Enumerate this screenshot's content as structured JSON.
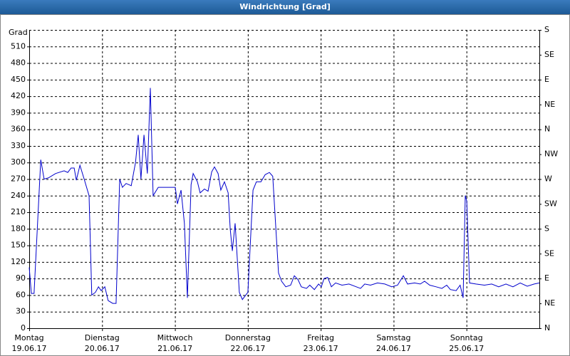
{
  "chart_data": {
    "type": "line",
    "title": "Windrichtung [Grad]",
    "y_label": "Grad",
    "color": "#0000cc",
    "grid": true,
    "xlim": [
      0,
      168
    ],
    "xticks": [
      {
        "value": 0,
        "label": "Montag"
      },
      {
        "value": 24,
        "label": "Dienstag"
      },
      {
        "value": 48,
        "label": "Mittwoch"
      },
      {
        "value": 72,
        "label": "Donnerstag"
      },
      {
        "value": 96,
        "label": "Freitag"
      },
      {
        "value": 120,
        "label": "Samstag"
      },
      {
        "value": 144,
        "label": "Sonntag"
      }
    ],
    "xtick_dates": [
      "19.06.17",
      "20.06.17",
      "21.06.17",
      "22.06.17",
      "23.06.17",
      "24.06.17",
      "25.06.17"
    ],
    "ylim": [
      0,
      540
    ],
    "yticks": [
      0,
      30,
      60,
      90,
      120,
      150,
      180,
      210,
      240,
      270,
      300,
      330,
      360,
      390,
      420,
      450,
      480,
      510
    ],
    "y2lim": [
      0,
      540
    ],
    "y2ticks": [
      {
        "value": 0,
        "label": "N"
      },
      {
        "value": 45,
        "label": "NE"
      },
      {
        "value": 90,
        "label": "E"
      },
      {
        "value": 135,
        "label": "SE"
      },
      {
        "value": 180,
        "label": "S"
      },
      {
        "value": 225,
        "label": "SW"
      },
      {
        "value": 270,
        "label": "W"
      },
      {
        "value": 315,
        "label": "NW"
      },
      {
        "value": 360,
        "label": "N"
      },
      {
        "value": 405,
        "label": "NE"
      },
      {
        "value": 450,
        "label": "E"
      },
      {
        "value": 495,
        "label": "SE"
      },
      {
        "value": 540,
        "label": "S"
      }
    ],
    "x": [
      0,
      0.7,
      1.6,
      3.8,
      4.9,
      6.3,
      8.7,
      11.5,
      12.7,
      13.8,
      14.8,
      15.5,
      16.7,
      18.1,
      19.7,
      20.6,
      21.8,
      22.8,
      23.7,
      24.9,
      26.0,
      27.5,
      28.6,
      29.8,
      30.7,
      31.9,
      33.6,
      35.0,
      35.9,
      36.8,
      37.8,
      38.9,
      39.9,
      40.8,
      42.5,
      45.5,
      48.1,
      48.8,
      50.0,
      51.1,
      52.1,
      53.3,
      54.0,
      55.4,
      56.3,
      57.7,
      58.9,
      60.1,
      61.0,
      62.2,
      63.1,
      64.3,
      65.5,
      66.2,
      66.9,
      67.8,
      69.2,
      70.2,
      71.3,
      72.0,
      73.7,
      74.8,
      76.3,
      77.7,
      79.1,
      80.2,
      82.1,
      83.1,
      84.5,
      86.1,
      87.3,
      88.5,
      89.6,
      91.3,
      92.4,
      93.9,
      95.3,
      96.2,
      97.1,
      98.3,
      99.5,
      100.9,
      103.0,
      105.3,
      107.7,
      109.1,
      110.5,
      112.4,
      114.7,
      117.1,
      119.4,
      121.3,
      123.2,
      124.6,
      126.9,
      128.8,
      130.2,
      131.9,
      134.0,
      135.9,
      137.5,
      138.7,
      140.6,
      141.9,
      142.9,
      143.6,
      144.1,
      145.0,
      147.1,
      149.9,
      152.3,
      154.6,
      157.0,
      159.3,
      161.7,
      164.0,
      166.3,
      168.0
    ],
    "values": [
      110,
      63,
      63,
      305,
      270,
      272,
      280,
      285,
      282,
      290,
      290,
      268,
      295,
      270,
      240,
      60,
      65,
      75,
      68,
      75,
      50,
      45,
      45,
      270,
      255,
      262,
      258,
      300,
      350,
      270,
      350,
      280,
      435,
      240,
      255,
      255,
      255,
      225,
      250,
      190,
      55,
      260,
      280,
      265,
      245,
      252,
      248,
      283,
      292,
      280,
      250,
      265,
      245,
      180,
      140,
      190,
      65,
      52,
      60,
      65,
      250,
      265,
      265,
      278,
      282,
      275,
      100,
      85,
      75,
      78,
      95,
      88,
      75,
      72,
      78,
      70,
      80,
      75,
      90,
      92,
      75,
      82,
      78,
      80,
      75,
      72,
      80,
      78,
      82,
      80,
      75,
      78,
      95,
      80,
      82,
      80,
      85,
      78,
      75,
      72,
      78,
      70,
      68,
      78,
      55,
      240,
      230,
      82,
      80,
      78,
      80,
      75,
      80,
      75,
      82,
      76,
      80,
      82
    ]
  }
}
